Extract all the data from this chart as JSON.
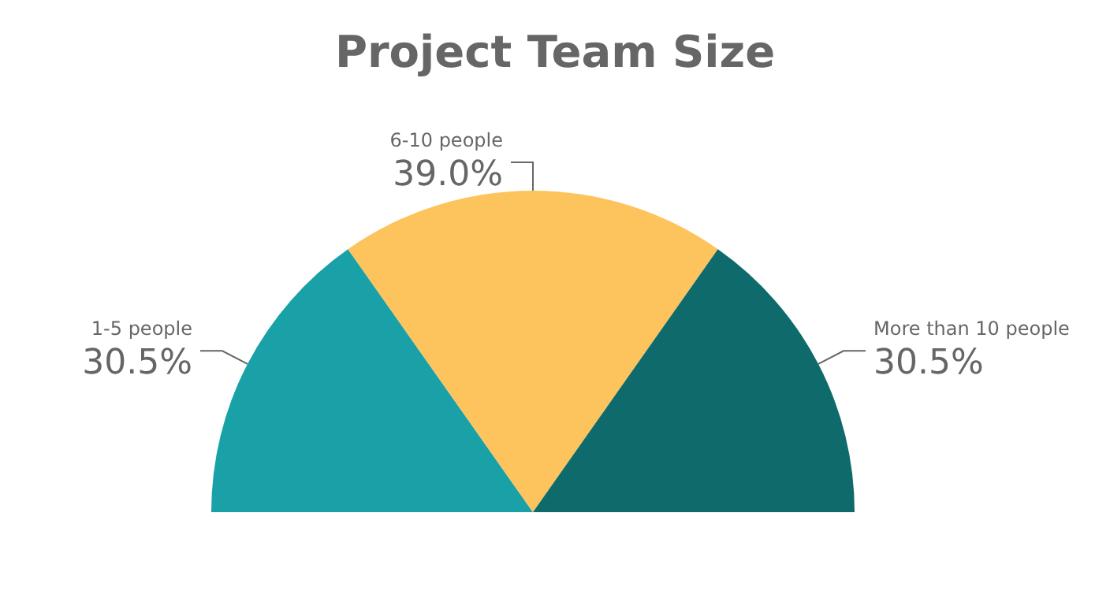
{
  "chart_data": {
    "type": "pie",
    "title": "Project Team Size",
    "categories": [
      "1-5 people",
      "6-10 people",
      "More than 10 people"
    ],
    "values": [
      30.5,
      39.0,
      30.5
    ],
    "value_labels": [
      "30.5%",
      "39.0%",
      "30.5%"
    ],
    "colors": [
      "#1aa1a7",
      "#fdc35d",
      "#0e6a6b"
    ],
    "legend": false
  }
}
